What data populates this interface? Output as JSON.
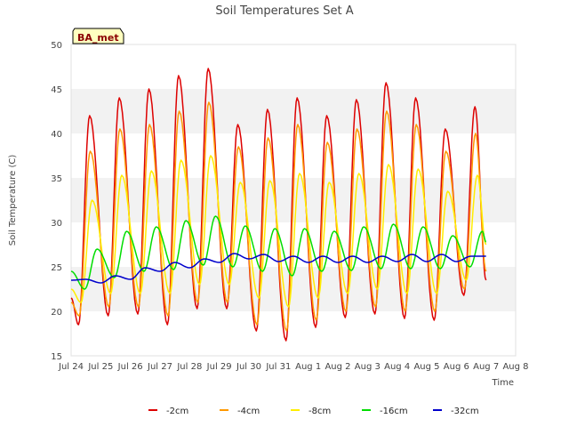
{
  "chart_data": {
    "type": "line",
    "title": "Soil Temperatures Set A",
    "xlabel": "Time",
    "ylabel": "Soil Temperature (C)",
    "badge": "BA_met",
    "xlim": [
      "Jul 24",
      "Aug 8"
    ],
    "ylim": [
      15,
      50
    ],
    "y_ticks": [
      15,
      20,
      25,
      30,
      35,
      40,
      45,
      50
    ],
    "x_ticks": [
      "Jul 24",
      "Jul 25",
      "Jul 26",
      "Jul 27",
      "Jul 28",
      "Jul 29",
      "Jul 30",
      "Jul 31",
      "Aug 1",
      "Aug 2",
      "Aug 3",
      "Aug 4",
      "Aug 5",
      "Aug 6",
      "Aug 7",
      "Aug 8"
    ],
    "grid": "horizontal bands",
    "legend_position": "bottom",
    "series": [
      {
        "name": "-2cm",
        "color": "#dd0000",
        "peaks": [
          {
            "date": "Jul 24 15:00",
            "value": 42.0
          },
          {
            "date": "Jul 25 15:00",
            "value": 44.0
          },
          {
            "date": "Jul 26 15:00",
            "value": 45.0
          },
          {
            "date": "Jul 27 15:00",
            "value": 46.5
          },
          {
            "date": "Jul 28 15:00",
            "value": 47.3
          },
          {
            "date": "Jul 29 15:00",
            "value": 41.0
          },
          {
            "date": "Jul 30 15:00",
            "value": 42.7
          },
          {
            "date": "Jul 31 15:00",
            "value": 44.0
          },
          {
            "date": "Aug 1 15:00",
            "value": 42.0
          },
          {
            "date": "Aug 2 15:00",
            "value": 43.8
          },
          {
            "date": "Aug 3 15:00",
            "value": 45.7
          },
          {
            "date": "Aug 4 15:00",
            "value": 44.0
          },
          {
            "date": "Aug 5 15:00",
            "value": 40.5
          },
          {
            "date": "Aug 6 15:00",
            "value": 43.0
          }
        ],
        "troughs": [
          {
            "date": "Jul 24 06:00",
            "value": 18.5
          },
          {
            "date": "Jul 25 06:00",
            "value": 19.5
          },
          {
            "date": "Jul 26 06:00",
            "value": 19.7
          },
          {
            "date": "Jul 27 06:00",
            "value": 18.5
          },
          {
            "date": "Jul 28 06:00",
            "value": 20.3
          },
          {
            "date": "Jul 29 06:00",
            "value": 20.3
          },
          {
            "date": "Jul 30 06:00",
            "value": 17.8
          },
          {
            "date": "Jul 31 06:00",
            "value": 16.7
          },
          {
            "date": "Aug 1 06:00",
            "value": 18.2
          },
          {
            "date": "Aug 2 06:00",
            "value": 19.3
          },
          {
            "date": "Aug 3 06:00",
            "value": 19.7
          },
          {
            "date": "Aug 4 06:00",
            "value": 19.2
          },
          {
            "date": "Aug 5 06:00",
            "value": 19.0
          },
          {
            "date": "Aug 6 06:00",
            "value": 21.8
          }
        ],
        "start": {
          "date": "Jul 24 00:00",
          "value": 21.5
        },
        "end": {
          "date": "Aug 7 00:00",
          "value": 23.5
        }
      },
      {
        "name": "-4cm",
        "color": "#ff9900",
        "peaks": [
          {
            "date": "Jul 24 15:30",
            "value": 38.0
          },
          {
            "date": "Jul 25 15:30",
            "value": 40.5
          },
          {
            "date": "Jul 26 15:30",
            "value": 41.0
          },
          {
            "date": "Jul 27 15:30",
            "value": 42.5
          },
          {
            "date": "Jul 28 15:30",
            "value": 43.5
          },
          {
            "date": "Jul 29 15:30",
            "value": 38.5
          },
          {
            "date": "Jul 30 15:30",
            "value": 39.5
          },
          {
            "date": "Jul 31 15:30",
            "value": 41.0
          },
          {
            "date": "Aug 1 15:30",
            "value": 39.0
          },
          {
            "date": "Aug 2 15:30",
            "value": 40.5
          },
          {
            "date": "Aug 3 15:30",
            "value": 42.5
          },
          {
            "date": "Aug 4 15:30",
            "value": 41.0
          },
          {
            "date": "Aug 5 15:30",
            "value": 38.0
          },
          {
            "date": "Aug 6 15:30",
            "value": 40.0
          }
        ],
        "troughs": [
          {
            "date": "Jul 24 06:30",
            "value": 19.5
          },
          {
            "date": "Jul 25 06:30",
            "value": 20.5
          },
          {
            "date": "Jul 26 06:30",
            "value": 20.5
          },
          {
            "date": "Jul 27 06:30",
            "value": 19.5
          },
          {
            "date": "Jul 28 06:30",
            "value": 21.0
          },
          {
            "date": "Jul 29 06:30",
            "value": 21.0
          },
          {
            "date": "Jul 30 06:30",
            "value": 18.5
          },
          {
            "date": "Jul 31 06:30",
            "value": 17.8
          },
          {
            "date": "Aug 1 06:30",
            "value": 19.0
          },
          {
            "date": "Aug 2 06:30",
            "value": 20.0
          },
          {
            "date": "Aug 3 06:30",
            "value": 20.5
          },
          {
            "date": "Aug 4 06:30",
            "value": 20.0
          },
          {
            "date": "Aug 5 06:30",
            "value": 20.0
          },
          {
            "date": "Aug 6 06:30",
            "value": 22.5
          }
        ],
        "start": {
          "date": "Jul 24 00:00",
          "value": 21.0
        },
        "end": {
          "date": "Aug 7 00:00",
          "value": 24.5
        }
      },
      {
        "name": "-8cm",
        "color": "#ffee00",
        "peaks": [
          {
            "date": "Jul 24 17:00",
            "value": 32.5
          },
          {
            "date": "Jul 25 17:00",
            "value": 35.3
          },
          {
            "date": "Jul 26 17:00",
            "value": 35.8
          },
          {
            "date": "Jul 27 17:00",
            "value": 37.0
          },
          {
            "date": "Jul 28 17:00",
            "value": 37.5
          },
          {
            "date": "Jul 29 17:00",
            "value": 34.5
          },
          {
            "date": "Jul 30 17:00",
            "value": 34.7
          },
          {
            "date": "Jul 31 17:00",
            "value": 35.5
          },
          {
            "date": "Aug 1 17:00",
            "value": 34.5
          },
          {
            "date": "Aug 2 17:00",
            "value": 35.5
          },
          {
            "date": "Aug 3 17:00",
            "value": 36.5
          },
          {
            "date": "Aug 4 17:00",
            "value": 36.0
          },
          {
            "date": "Aug 5 17:00",
            "value": 33.5
          },
          {
            "date": "Aug 6 17:00",
            "value": 35.3
          }
        ],
        "troughs": [
          {
            "date": "Jul 24 08:00",
            "value": 21.0
          },
          {
            "date": "Jul 25 08:00",
            "value": 22.0
          },
          {
            "date": "Jul 26 08:00",
            "value": 22.0
          },
          {
            "date": "Jul 27 08:00",
            "value": 22.0
          },
          {
            "date": "Jul 28 08:00",
            "value": 23.0
          },
          {
            "date": "Jul 29 08:00",
            "value": 23.0
          },
          {
            "date": "Jul 30 08:00",
            "value": 21.5
          },
          {
            "date": "Jul 31 08:00",
            "value": 20.5
          },
          {
            "date": "Aug 1 08:00",
            "value": 21.5
          },
          {
            "date": "Aug 2 08:00",
            "value": 22.0
          },
          {
            "date": "Aug 3 08:00",
            "value": 22.5
          },
          {
            "date": "Aug 4 08:00",
            "value": 22.0
          },
          {
            "date": "Aug 5 08:00",
            "value": 22.0
          },
          {
            "date": "Aug 6 08:00",
            "value": 23.5
          }
        ],
        "start": {
          "date": "Jul 24 00:00",
          "value": 22.5
        },
        "end": {
          "date": "Aug 7 00:00",
          "value": 27.5
        }
      },
      {
        "name": "-16cm",
        "color": "#00dd00",
        "peaks": [
          {
            "date": "Jul 24 21:00",
            "value": 27.0
          },
          {
            "date": "Jul 25 21:00",
            "value": 29.0
          },
          {
            "date": "Jul 26 21:00",
            "value": 29.5
          },
          {
            "date": "Jul 27 21:00",
            "value": 30.2
          },
          {
            "date": "Jul 28 21:00",
            "value": 30.7
          },
          {
            "date": "Jul 29 21:00",
            "value": 29.6
          },
          {
            "date": "Jul 30 21:00",
            "value": 29.3
          },
          {
            "date": "Jul 31 21:00",
            "value": 29.3
          },
          {
            "date": "Aug 1 21:00",
            "value": 29.0
          },
          {
            "date": "Aug 2 21:00",
            "value": 29.5
          },
          {
            "date": "Aug 3 21:00",
            "value": 29.8
          },
          {
            "date": "Aug 4 21:00",
            "value": 29.5
          },
          {
            "date": "Aug 5 21:00",
            "value": 28.5
          },
          {
            "date": "Aug 6 21:00",
            "value": 29.0
          }
        ],
        "troughs": [
          {
            "date": "Jul 24 11:00",
            "value": 22.5
          },
          {
            "date": "Jul 25 11:00",
            "value": 23.8
          },
          {
            "date": "Jul 26 11:00",
            "value": 24.5
          },
          {
            "date": "Jul 27 11:00",
            "value": 24.7
          },
          {
            "date": "Jul 28 11:00",
            "value": 25.2
          },
          {
            "date": "Jul 29 11:00",
            "value": 25.0
          },
          {
            "date": "Jul 30 11:00",
            "value": 24.5
          },
          {
            "date": "Jul 31 11:00",
            "value": 24.0
          },
          {
            "date": "Aug 1 11:00",
            "value": 24.5
          },
          {
            "date": "Aug 2 11:00",
            "value": 24.6
          },
          {
            "date": "Aug 3 11:00",
            "value": 24.8
          },
          {
            "date": "Aug 4 11:00",
            "value": 24.8
          },
          {
            "date": "Aug 5 11:00",
            "value": 24.8
          },
          {
            "date": "Aug 6 11:00",
            "value": 25.0
          }
        ],
        "start": {
          "date": "Jul 24 00:00",
          "value": 24.5
        },
        "end": {
          "date": "Aug 7 00:00",
          "value": 27.8
        }
      },
      {
        "name": "-32cm",
        "color": "#0000cc",
        "x": [
          "Jul 24",
          "Jul 24 12:00",
          "Jul 25",
          "Jul 25 12:00",
          "Jul 26",
          "Jul 26 12:00",
          "Jul 27",
          "Jul 27 12:00",
          "Jul 28",
          "Jul 28 12:00",
          "Jul 29",
          "Jul 29 12:00",
          "Jul 30",
          "Jul 30 12:00",
          "Jul 31",
          "Jul 31 12:00",
          "Aug 1",
          "Aug 1 12:00",
          "Aug 2",
          "Aug 2 12:00",
          "Aug 3",
          "Aug 3 12:00",
          "Aug 4",
          "Aug 4 12:00",
          "Aug 5",
          "Aug 5 12:00",
          "Aug 6",
          "Aug 6 12:00",
          "Aug 7"
        ],
        "values": [
          23.5,
          23.6,
          23.2,
          24.0,
          23.6,
          24.9,
          24.5,
          25.5,
          24.9,
          25.9,
          25.5,
          26.5,
          25.9,
          26.4,
          25.6,
          26.2,
          25.5,
          26.2,
          25.5,
          26.2,
          25.5,
          26.2,
          25.6,
          26.4,
          25.6,
          26.4,
          25.6,
          26.2,
          26.2
        ]
      }
    ]
  }
}
